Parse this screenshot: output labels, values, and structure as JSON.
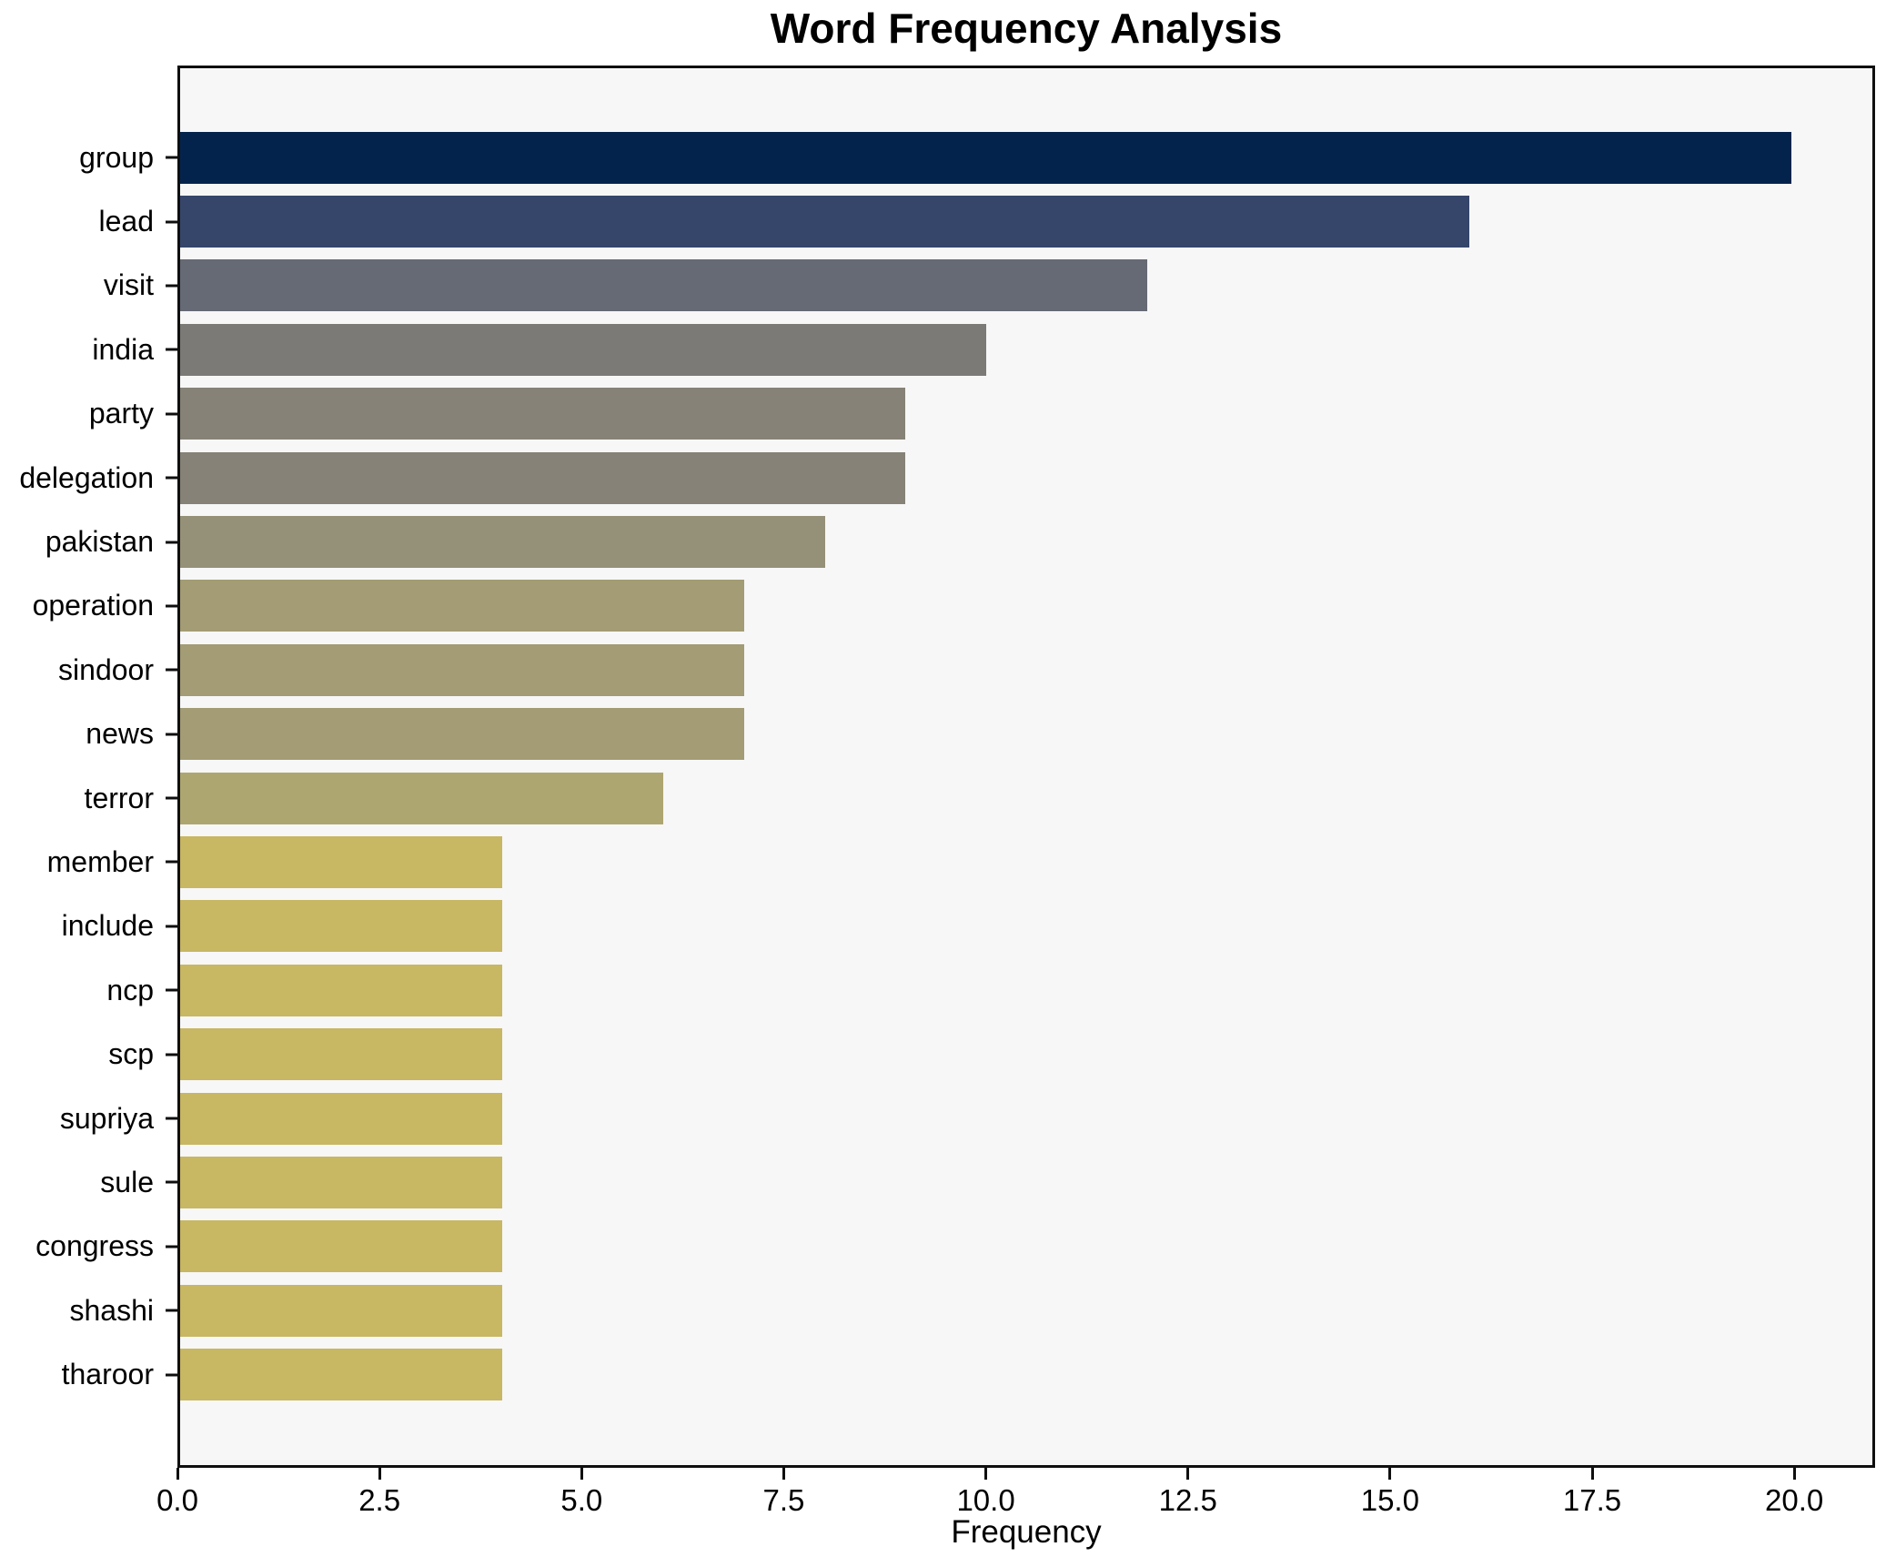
{
  "figure": {
    "background": "#ffffff",
    "plot_background": "#f7f7f8",
    "spine_color": "#0f0f0f",
    "text_color": "#000000"
  },
  "chart_data": {
    "type": "bar",
    "orientation": "horizontal",
    "title": "Word Frequency Analysis",
    "xlabel": "Frequency",
    "ylabel": "",
    "categories": [
      "group",
      "lead",
      "visit",
      "india",
      "party",
      "delegation",
      "pakistan",
      "operation",
      "sindoor",
      "news",
      "terror",
      "member",
      "include",
      "ncp",
      "scp",
      "supriya",
      "sule",
      "congress",
      "shashi",
      "tharoor"
    ],
    "values": [
      20,
      16,
      12,
      10,
      9,
      9,
      8,
      7,
      7,
      7,
      6,
      4,
      4,
      4,
      4,
      4,
      4,
      4,
      4,
      4
    ],
    "bar_colors": [
      "#04234c",
      "#36466b",
      "#666a75",
      "#7b7a77",
      "#868277",
      "#868277",
      "#959078",
      "#a39c74",
      "#a39c74",
      "#a39c74",
      "#aea671",
      "#c8b763",
      "#c8b763",
      "#c8b763",
      "#c8b763",
      "#c8b763",
      "#c8b763",
      "#c8b763",
      "#c8b763",
      "#c8b763"
    ],
    "xlim": [
      0,
      21
    ],
    "xticks": [
      0,
      2.5,
      5,
      7.5,
      10,
      12.5,
      15,
      17.5,
      20
    ],
    "xtick_labels": [
      "0.0",
      "2.5",
      "5.0",
      "7.5",
      "10.0",
      "12.5",
      "15.0",
      "17.5",
      "20.0"
    ],
    "grid": false,
    "legend": null
  }
}
